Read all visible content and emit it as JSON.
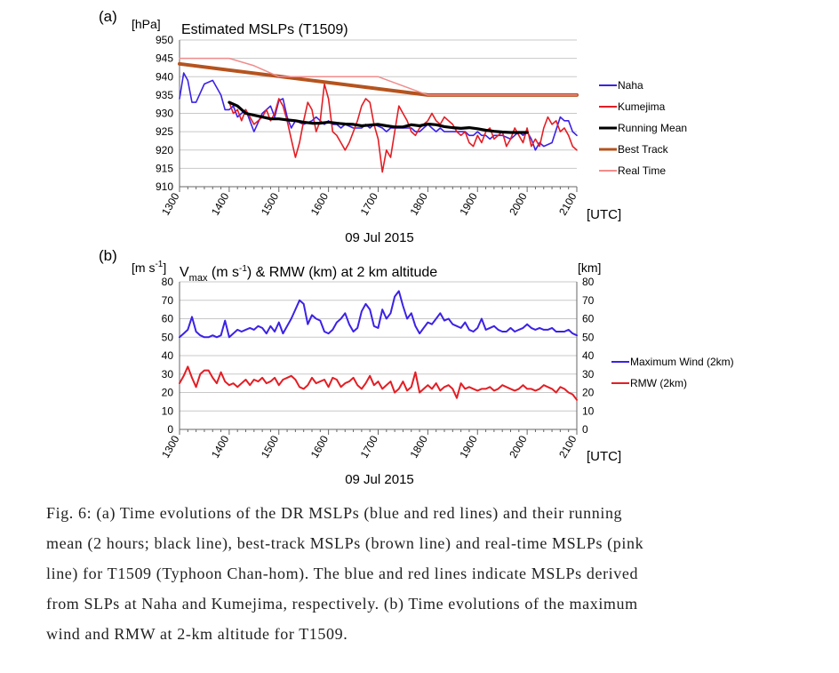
{
  "chart_data": [
    {
      "panel": "(a)",
      "type": "line",
      "title": "Estimated MSLPs (T1509)",
      "y_unit": "[hPa]",
      "x_unit": "[UTC]",
      "xlabel": "09 Jul 2015",
      "xlim": [
        1300,
        2100
      ],
      "ylim": [
        910,
        950
      ],
      "x_ticks": [
        "1300",
        "1400",
        "1500",
        "1600",
        "1700",
        "1800",
        "1900",
        "2000",
        "2100"
      ],
      "y_ticks": [
        "910",
        "915",
        "920",
        "925",
        "930",
        "935",
        "940",
        "945",
        "950"
      ],
      "legend_position": "right",
      "series": [
        {
          "name": "Naha",
          "color": "#3b22e6",
          "width": 1.6,
          "x": [
            1300,
            1305,
            1310,
            1315,
            1320,
            1330,
            1340,
            1350,
            1355,
            1400,
            1405,
            1410,
            1415,
            1420,
            1430,
            1440,
            1445,
            1450,
            1455,
            1500,
            1505,
            1510,
            1515,
            1520,
            1530,
            1540,
            1545,
            1550,
            1555,
            1600,
            1605,
            1610,
            1615,
            1620,
            1630,
            1640,
            1645,
            1650,
            1655,
            1700,
            1705,
            1710,
            1715,
            1720,
            1730,
            1740,
            1745,
            1750,
            1755,
            1800,
            1805,
            1810,
            1815,
            1820,
            1830,
            1840,
            1845,
            1850,
            1855,
            1900,
            1905,
            1910,
            1915,
            1920,
            1930,
            1940,
            1945,
            1950,
            1955,
            2000,
            2005,
            2010,
            2015,
            2020,
            2030,
            2040,
            2045,
            2050,
            2055,
            2100
          ],
          "y": [
            934,
            941,
            939,
            933,
            933,
            938,
            939,
            935,
            931,
            931,
            932,
            929,
            930,
            931,
            925,
            930,
            931,
            932,
            929,
            933.5,
            934,
            929,
            926,
            928,
            927,
            928,
            929,
            928,
            927,
            928,
            927,
            927,
            926,
            927,
            926,
            926,
            927,
            926,
            927,
            926.5,
            926,
            925,
            926,
            926,
            926,
            926,
            925,
            925,
            926,
            927,
            926,
            925,
            926,
            925,
            925,
            925,
            925,
            924,
            924,
            925,
            924,
            924,
            923,
            924,
            924,
            923,
            924,
            925,
            924,
            925,
            923,
            920,
            922,
            921,
            922,
            929,
            928,
            928,
            925,
            924
          ]
        },
        {
          "name": "Kumejima",
          "color": "#e31e24",
          "width": 1.6,
          "x": [
            1400,
            1405,
            1410,
            1415,
            1420,
            1425,
            1430,
            1435,
            1440,
            1445,
            1450,
            1455,
            1500,
            1505,
            1510,
            1515,
            1520,
            1525,
            1530,
            1535,
            1540,
            1545,
            1550,
            1555,
            1600,
            1605,
            1610,
            1615,
            1620,
            1625,
            1630,
            1635,
            1640,
            1645,
            1650,
            1655,
            1700,
            1705,
            1710,
            1715,
            1720,
            1725,
            1730,
            1735,
            1740,
            1745,
            1750,
            1755,
            1800,
            1805,
            1810,
            1815,
            1820,
            1825,
            1830,
            1835,
            1840,
            1845,
            1850,
            1855,
            1900,
            1905,
            1910,
            1915,
            1920,
            1925,
            1930,
            1935,
            1940,
            1945,
            1950,
            1955,
            2000,
            2005,
            2010,
            2015,
            2020,
            2025,
            2030,
            2035,
            2040,
            2045,
            2050,
            2055,
            2100
          ],
          "y": [
            933,
            930,
            931,
            928,
            931,
            929,
            927,
            928,
            929,
            931,
            928,
            930,
            934,
            932,
            928,
            923,
            918,
            922,
            928,
            933,
            931,
            925,
            928,
            938,
            934,
            925,
            924,
            922,
            920,
            922,
            925,
            928,
            932,
            934,
            933,
            927,
            923,
            914,
            920,
            918,
            925,
            932,
            930,
            928,
            925,
            924,
            926,
            927,
            928,
            930,
            928,
            927,
            929,
            928,
            927,
            925,
            924,
            925,
            922,
            921,
            924,
            922,
            925,
            926,
            923,
            924,
            925,
            921,
            923,
            926,
            924,
            922,
            926,
            921,
            923,
            921,
            926,
            929,
            927,
            928,
            925,
            926,
            924,
            921,
            920
          ]
        },
        {
          "name": "Running Mean",
          "color": "#000000",
          "width": 3.2,
          "x": [
            1400,
            1410,
            1420,
            1430,
            1440,
            1450,
            1500,
            1510,
            1520,
            1530,
            1540,
            1550,
            1600,
            1610,
            1620,
            1630,
            1640,
            1650,
            1700,
            1710,
            1720,
            1730,
            1740,
            1750,
            1800,
            1810,
            1820,
            1830,
            1840,
            1850,
            1900,
            1910,
            1920,
            1930,
            1940,
            1950,
            2000
          ],
          "y": [
            933,
            932,
            930,
            929.5,
            929,
            928.5,
            928.5,
            928.2,
            928,
            927.6,
            927.3,
            927.3,
            927.6,
            927.3,
            927.1,
            927,
            926.6,
            926.8,
            927,
            926.6,
            926.3,
            926.3,
            926.9,
            926.6,
            927.1,
            926.9,
            926.4,
            926.1,
            925.9,
            926.1,
            925.8,
            925.4,
            925.1,
            924.9,
            924.8,
            924.8,
            924.8
          ]
        },
        {
          "name": "Best Track",
          "color": "#b5531e",
          "width": 4,
          "x": [
            1300,
            1800,
            2100
          ],
          "y": [
            943.5,
            935,
            935
          ]
        },
        {
          "name": "Real Time",
          "color": "#f08c8c",
          "width": 1.5,
          "x": [
            1300,
            1400,
            1430,
            1500,
            1700,
            1800,
            2100
          ],
          "y": [
            945,
            945,
            943,
            940,
            940,
            935,
            935
          ]
        }
      ]
    },
    {
      "panel": "(b)",
      "type": "line",
      "title": "V_max (m s -1) & RMW (km) at 2 km altitude",
      "y_unit": "[m s -1]",
      "y2_unit": "[km]",
      "x_unit": "[UTC]",
      "xlabel": "09 Jul 2015",
      "xlim": [
        1300,
        2100
      ],
      "ylim": [
        0,
        80
      ],
      "y2lim": [
        0,
        80
      ],
      "x_ticks": [
        "1300",
        "1400",
        "1500",
        "1600",
        "1700",
        "1800",
        "1900",
        "2000",
        "2100"
      ],
      "y_ticks": [
        "0",
        "10",
        "20",
        "30",
        "40",
        "50",
        "60",
        "70",
        "80"
      ],
      "legend_position": "right",
      "series": [
        {
          "name": "Maximum Wind (2km)",
          "color": "#3b22e6",
          "width": 2,
          "x": [
            1300,
            1305,
            1310,
            1315,
            1320,
            1325,
            1330,
            1335,
            1340,
            1345,
            1350,
            1355,
            1400,
            1405,
            1410,
            1415,
            1420,
            1425,
            1430,
            1435,
            1440,
            1445,
            1450,
            1455,
            1500,
            1505,
            1510,
            1515,
            1520,
            1525,
            1530,
            1535,
            1540,
            1545,
            1550,
            1555,
            1600,
            1605,
            1610,
            1615,
            1620,
            1625,
            1630,
            1635,
            1640,
            1645,
            1650,
            1655,
            1700,
            1705,
            1710,
            1715,
            1720,
            1725,
            1730,
            1735,
            1740,
            1745,
            1750,
            1755,
            1800,
            1805,
            1810,
            1815,
            1820,
            1825,
            1830,
            1835,
            1840,
            1845,
            1850,
            1855,
            1900,
            1905,
            1910,
            1915,
            1920,
            1925,
            1930,
            1935,
            1940,
            1945,
            1950,
            1955,
            2000,
            2005,
            2010,
            2015,
            2020,
            2025,
            2030,
            2035,
            2040,
            2045,
            2050,
            2055,
            2100
          ],
          "y": [
            50,
            52,
            54,
            61,
            53,
            51,
            50,
            50,
            51,
            50,
            51,
            59,
            50,
            52,
            54,
            53,
            54,
            55,
            54,
            56,
            55,
            52,
            56,
            53,
            58,
            52,
            56,
            60,
            65,
            70,
            68,
            57,
            62,
            60,
            59,
            53,
            52,
            54,
            58,
            60,
            63,
            57,
            53,
            55,
            64,
            68,
            65,
            56,
            55,
            65,
            60,
            63,
            72,
            75,
            67,
            60,
            63,
            56,
            52,
            55,
            58,
            57,
            60,
            63,
            59,
            60,
            57,
            56,
            55,
            58,
            54,
            53,
            55,
            60,
            54,
            55,
            56,
            54,
            53,
            53,
            55,
            53,
            54,
            55,
            57,
            55,
            54,
            55,
            54,
            54,
            55,
            53,
            53,
            53,
            54,
            52,
            51
          ]
        },
        {
          "name": "RMW (2km)",
          "color": "#e31e24",
          "width": 2,
          "x": [
            1300,
            1305,
            1310,
            1315,
            1320,
            1325,
            1330,
            1335,
            1340,
            1345,
            1350,
            1355,
            1400,
            1405,
            1410,
            1415,
            1420,
            1425,
            1430,
            1435,
            1440,
            1445,
            1450,
            1455,
            1500,
            1505,
            1510,
            1515,
            1520,
            1525,
            1530,
            1535,
            1540,
            1545,
            1550,
            1555,
            1600,
            1605,
            1610,
            1615,
            1620,
            1625,
            1630,
            1635,
            1640,
            1645,
            1650,
            1655,
            1700,
            1705,
            1710,
            1715,
            1720,
            1725,
            1730,
            1735,
            1740,
            1745,
            1750,
            1755,
            1800,
            1805,
            1810,
            1815,
            1820,
            1825,
            1830,
            1835,
            1840,
            1845,
            1850,
            1855,
            1900,
            1905,
            1910,
            1915,
            1920,
            1925,
            1930,
            1935,
            1940,
            1945,
            1950,
            1955,
            2000,
            2005,
            2010,
            2015,
            2020,
            2025,
            2030,
            2035,
            2040,
            2045,
            2050,
            2055,
            2100
          ],
          "y": [
            25,
            29,
            34,
            28,
            23,
            30,
            32,
            32,
            28,
            25,
            31,
            26,
            24,
            25,
            23,
            25,
            27,
            24,
            27,
            26,
            28,
            25,
            26,
            28,
            24,
            27,
            28,
            29,
            27,
            23,
            22,
            24,
            28,
            25,
            26,
            27,
            23,
            28,
            27,
            23,
            25,
            26,
            28,
            24,
            22,
            25,
            29,
            24,
            26,
            22,
            24,
            26,
            20,
            22,
            26,
            21,
            23,
            31,
            20,
            22,
            24,
            22,
            25,
            21,
            23,
            24,
            22,
            17,
            25,
            22,
            23,
            22,
            21,
            22,
            22,
            23,
            21,
            22,
            24,
            23,
            22,
            21,
            22,
            24,
            22,
            22,
            21,
            22,
            24,
            23,
            22,
            20,
            23,
            22,
            20,
            19,
            16
          ]
        }
      ]
    }
  ],
  "caption": {
    "lines": [
      "Fig. 6: (a) Time evolutions of the DR MSLPs (blue and red lines) and their running",
      "mean (2 hours; black line), best-track MSLPs (brown line) and real-time MSLPs (pink",
      "line) for T1509 (Typhoon Chan-hom). The blue and red lines indicate MSLPs derived",
      "from SLPs at Naha and Kumejima, respectively. (b) Time evolutions of the maximum",
      "wind and RMW at 2-km altitude for T1509."
    ]
  }
}
